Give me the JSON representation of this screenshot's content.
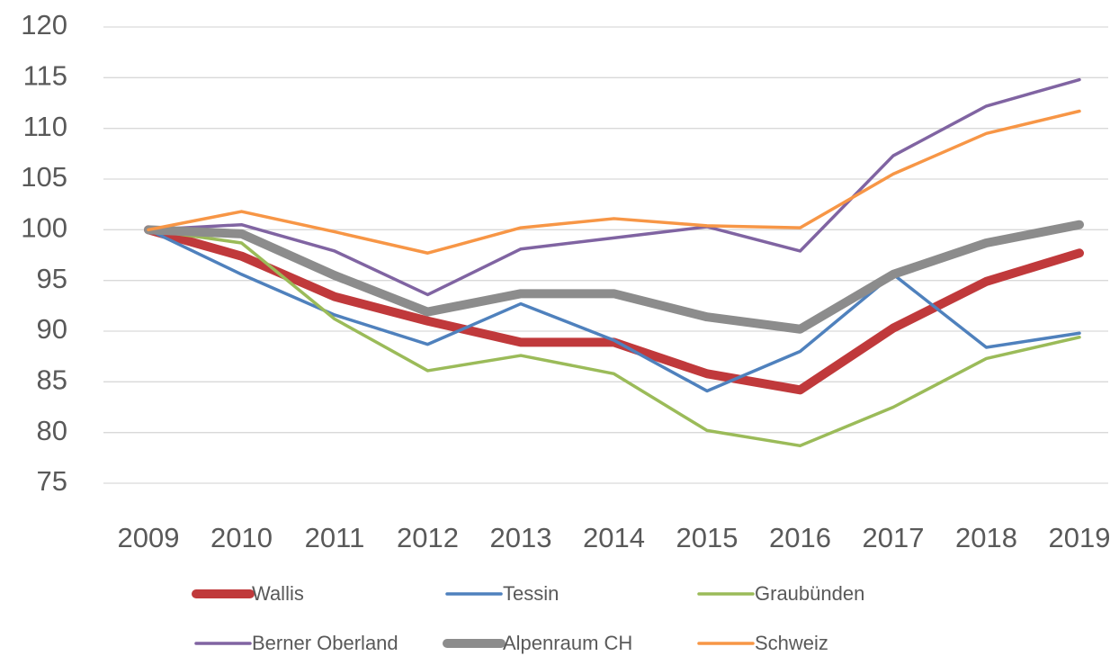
{
  "chart_data": {
    "type": "line",
    "categories": [
      "2009",
      "2010",
      "2011",
      "2012",
      "2013",
      "2014",
      "2015",
      "2016",
      "2017",
      "2018",
      "2019"
    ],
    "series": [
      {
        "name": "Wallis",
        "color": "#c0393b",
        "line_width": 10,
        "values": [
          100,
          97.4,
          93.4,
          91.0,
          88.9,
          88.9,
          85.8,
          84.2,
          90.3,
          94.9,
          97.7
        ]
      },
      {
        "name": "Tessin",
        "color": "#4f81bd",
        "line_width": 3.5,
        "values": [
          100,
          95.6,
          91.6,
          88.7,
          92.7,
          89.1,
          84.1,
          88.0,
          95.6,
          88.4,
          89.8
        ]
      },
      {
        "name": "Graubünden",
        "color": "#9bbb59",
        "line_width": 3.5,
        "values": [
          100,
          98.7,
          91.2,
          86.1,
          87.6,
          85.8,
          80.2,
          78.7,
          82.5,
          87.3,
          89.4
        ]
      },
      {
        "name": "Berner Oberland",
        "color": "#8064a2",
        "line_width": 3.5,
        "values": [
          100,
          100.5,
          97.9,
          93.6,
          98.1,
          99.2,
          100.3,
          97.9,
          107.3,
          112.2,
          114.8
        ]
      },
      {
        "name": "Alpenraum CH",
        "color": "#8c8c8c",
        "line_width": 10,
        "values": [
          100,
          99.6,
          95.5,
          91.9,
          93.7,
          93.7,
          91.4,
          90.2,
          95.6,
          98.7,
          100.5
        ]
      },
      {
        "name": "Schweiz",
        "color": "#f79646",
        "line_width": 3.5,
        "values": [
          100,
          101.8,
          99.8,
          97.7,
          100.2,
          101.1,
          100.4,
          100.2,
          105.5,
          109.5,
          111.7
        ]
      }
    ],
    "ylim": [
      75,
      120
    ],
    "yticks": [
      75,
      80,
      85,
      90,
      95,
      100,
      105,
      110,
      115,
      120
    ],
    "grid": true,
    "legend": "bottom"
  }
}
